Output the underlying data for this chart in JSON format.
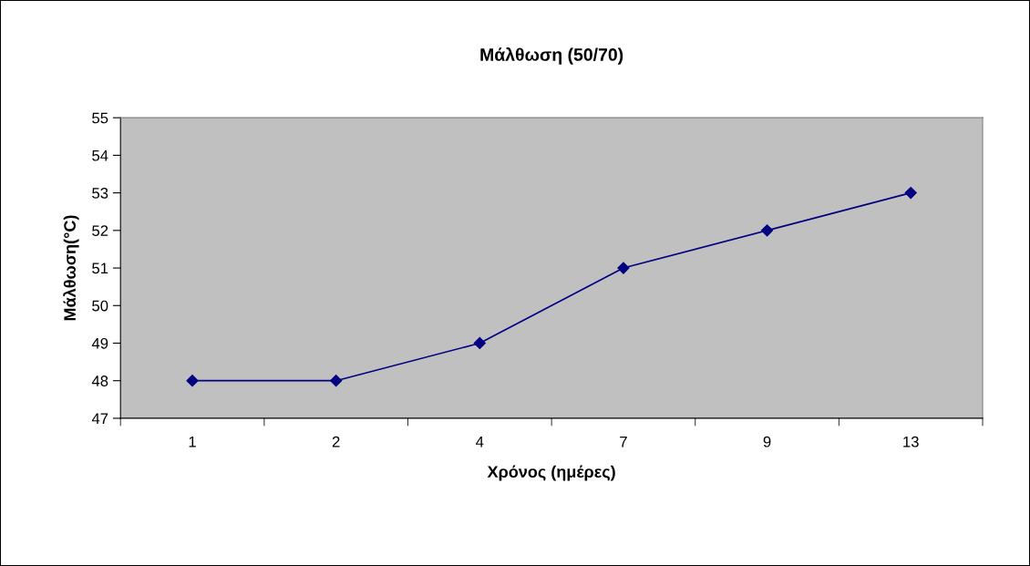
{
  "chart_data": {
    "type": "line",
    "title": "Μάλθωση (50/70)",
    "xlabel": "Χρόνος (ημέρες)",
    "ylabel": "Μάλθωση(°C)",
    "categories": [
      "1",
      "2",
      "4",
      "7",
      "9",
      "13"
    ],
    "series": [
      {
        "color": "#000080",
        "values": [
          48,
          48,
          49,
          51,
          52,
          53
        ]
      }
    ],
    "ylim": [
      47,
      55
    ],
    "yticks": [
      47,
      48,
      49,
      50,
      51,
      52,
      53,
      54,
      55
    ],
    "grid": false,
    "marker": "diamond",
    "line_style": "solid"
  }
}
